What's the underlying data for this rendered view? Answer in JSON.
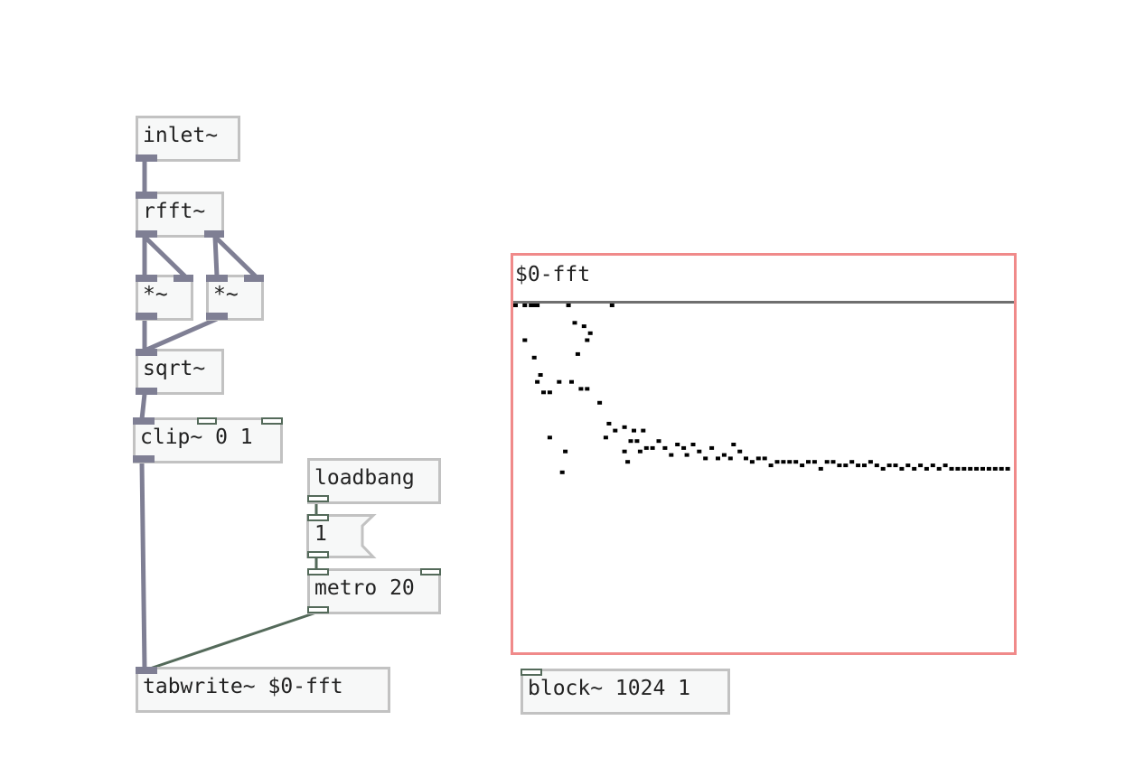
{
  "objects": {
    "inlet": "inlet~",
    "rfft": "rfft~",
    "mul_left": "*~",
    "mul_right": "*~",
    "sqrt": "sqrt~",
    "clip": "clip~ 0 1",
    "loadbang": "loadbang",
    "message": "1",
    "metro": "metro 20",
    "tabwrite": "tabwrite~ $0-fft",
    "block": "block~ 1024 1"
  },
  "array": {
    "name": "$0-fft",
    "points": [
      [
        0,
        1.0
      ],
      [
        3,
        1.0
      ],
      [
        5,
        1.0
      ],
      [
        6,
        1.0
      ],
      [
        7,
        1.0
      ],
      [
        17,
        1.0
      ],
      [
        31,
        1.0
      ],
      [
        3,
        0.9
      ],
      [
        19,
        0.95
      ],
      [
        22,
        0.94
      ],
      [
        24,
        0.92
      ],
      [
        23,
        0.9
      ],
      [
        6,
        0.85
      ],
      [
        8,
        0.8
      ],
      [
        7,
        0.78
      ],
      [
        9,
        0.75
      ],
      [
        11,
        0.75
      ],
      [
        14,
        0.78
      ],
      [
        18,
        0.78
      ],
      [
        21,
        0.76
      ],
      [
        23,
        0.76
      ],
      [
        20,
        0.86
      ],
      [
        27,
        0.72
      ],
      [
        30,
        0.66
      ],
      [
        32,
        0.64
      ],
      [
        35,
        0.65
      ],
      [
        29,
        0.62
      ],
      [
        35,
        0.58
      ],
      [
        38,
        0.64
      ],
      [
        37,
        0.61
      ],
      [
        41,
        0.64
      ],
      [
        39,
        0.61
      ],
      [
        11,
        0.62
      ],
      [
        16,
        0.58
      ],
      [
        15,
        0.52
      ],
      [
        36,
        0.55
      ],
      [
        40,
        0.58
      ],
      [
        42,
        0.59
      ],
      [
        44,
        0.59
      ],
      [
        46,
        0.61
      ],
      [
        48,
        0.59
      ],
      [
        50,
        0.57
      ],
      [
        52,
        0.6
      ],
      [
        54,
        0.59
      ],
      [
        55,
        0.57
      ],
      [
        57,
        0.6
      ],
      [
        59,
        0.58
      ],
      [
        61,
        0.56
      ],
      [
        63,
        0.59
      ],
      [
        65,
        0.56
      ],
      [
        67,
        0.57
      ],
      [
        69,
        0.56
      ],
      [
        70,
        0.6
      ],
      [
        72,
        0.58
      ],
      [
        74,
        0.56
      ],
      [
        76,
        0.55
      ],
      [
        78,
        0.56
      ],
      [
        80,
        0.56
      ],
      [
        82,
        0.54
      ],
      [
        84,
        0.55
      ],
      [
        86,
        0.55
      ],
      [
        88,
        0.55
      ],
      [
        90,
        0.55
      ],
      [
        92,
        0.54
      ],
      [
        94,
        0.55
      ],
      [
        96,
        0.55
      ],
      [
        98,
        0.53
      ],
      [
        100,
        0.55
      ],
      [
        102,
        0.55
      ],
      [
        104,
        0.54
      ],
      [
        106,
        0.54
      ],
      [
        108,
        0.55
      ],
      [
        110,
        0.54
      ],
      [
        112,
        0.54
      ],
      [
        114,
        0.55
      ],
      [
        116,
        0.54
      ],
      [
        118,
        0.53
      ],
      [
        120,
        0.54
      ],
      [
        122,
        0.54
      ],
      [
        124,
        0.53
      ],
      [
        126,
        0.54
      ],
      [
        128,
        0.53
      ],
      [
        130,
        0.54
      ],
      [
        132,
        0.53
      ],
      [
        134,
        0.54
      ],
      [
        136,
        0.53
      ],
      [
        138,
        0.54
      ],
      [
        140,
        0.53
      ],
      [
        142,
        0.53
      ],
      [
        144,
        0.53
      ],
      [
        146,
        0.53
      ],
      [
        148,
        0.53
      ],
      [
        150,
        0.53
      ],
      [
        152,
        0.53
      ],
      [
        154,
        0.53
      ],
      [
        156,
        0.53
      ],
      [
        158,
        0.53
      ]
    ]
  }
}
